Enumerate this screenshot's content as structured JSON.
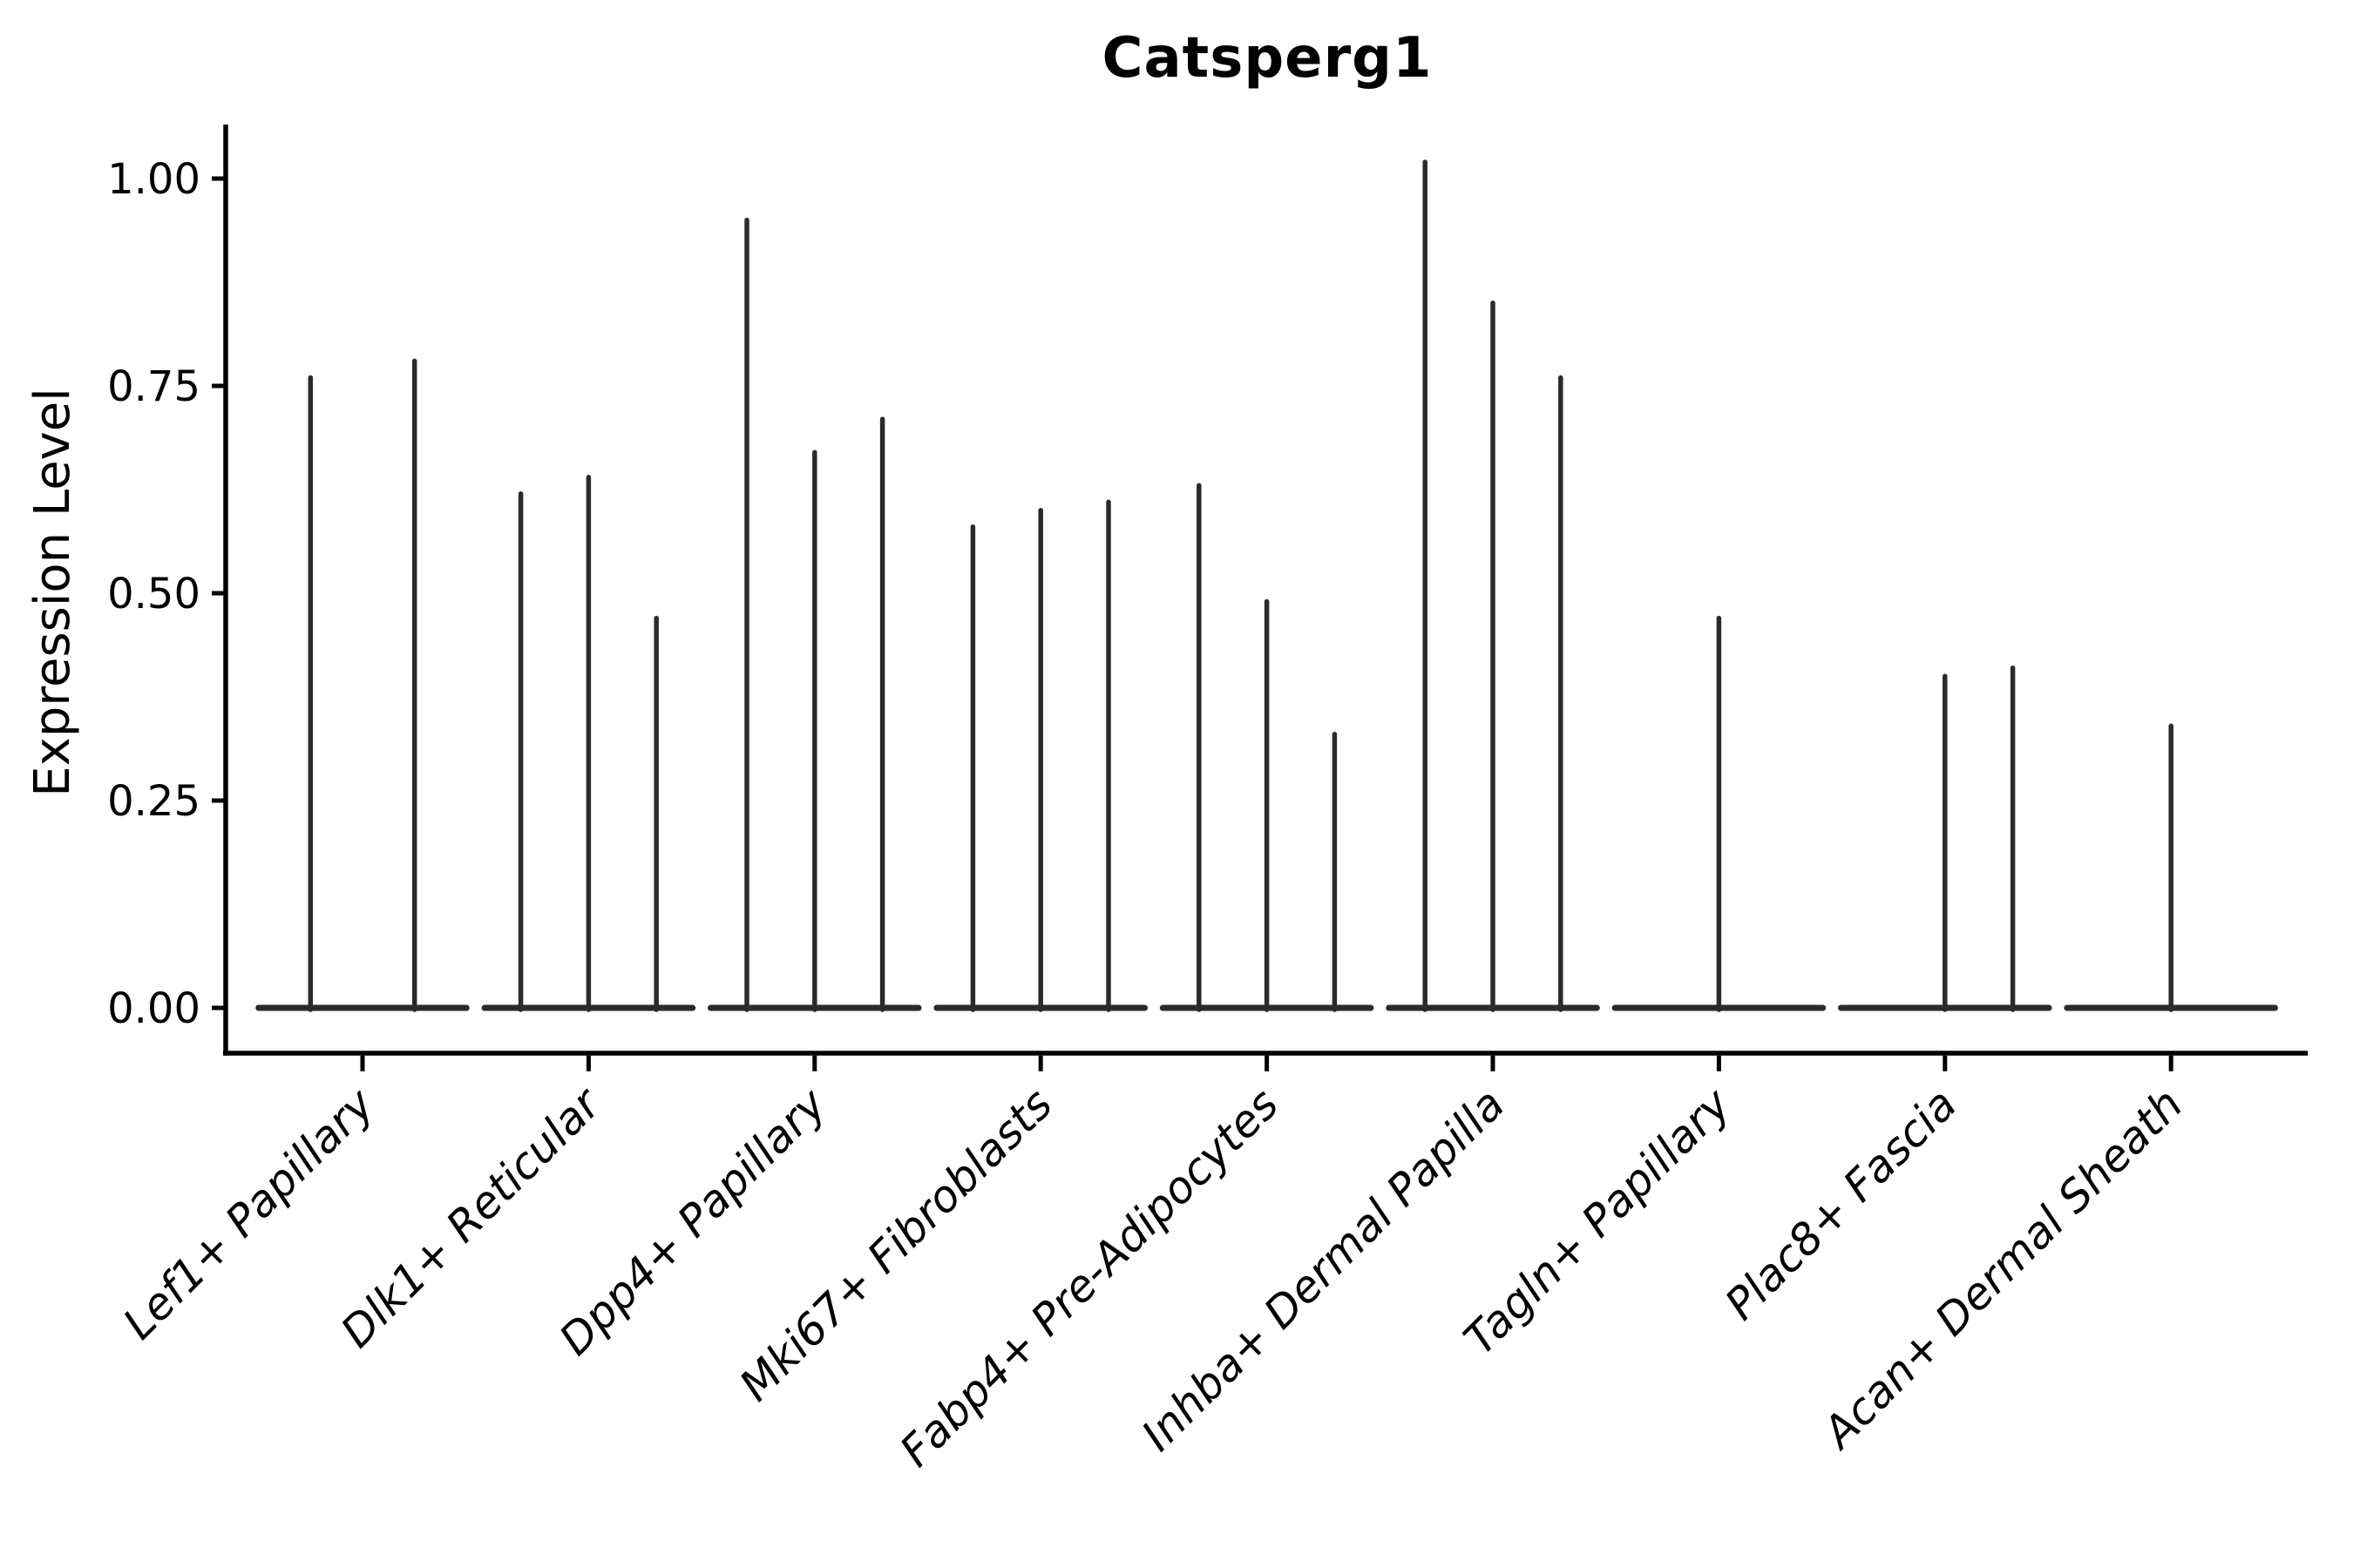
{
  "figure": {
    "title": "Catsperg1",
    "ylabel": "Expression Level"
  },
  "chart_data": {
    "type": "violin",
    "title": "Catsperg1",
    "xlabel": "",
    "ylabel": "Expression Level",
    "ylim": [
      -0.055,
      1.065
    ],
    "grid": false,
    "legend": null,
    "colors": {
      "violin_stroke": "#2b2b2b",
      "axis": "#000000",
      "text": "#000000"
    },
    "yticks": [
      {
        "value": 1.0,
        "label": "1.00"
      },
      {
        "value": 0.75,
        "label": "0.75"
      },
      {
        "value": 0.5,
        "label": "0.50"
      },
      {
        "value": 0.25,
        "label": "0.25"
      },
      {
        "value": 0.0,
        "label": "0.00"
      }
    ],
    "categories": [
      "Lef1+ Papillary",
      "Dlk1+ Reticular",
      "Dpp4+ Papillary",
      "Mki67+ Fibroblasts",
      "Fabp4+ Pre-Adipocytes",
      "Inhba+ Dermal Papilla",
      "Tagln+ Papillary",
      "Plac8+ Fascia",
      "Acan+ Dermal Sheath"
    ],
    "groups": [
      {
        "category": "Lef1+ Papillary",
        "violins": [
          {
            "peak": 0.76,
            "offset": -0.23
          },
          {
            "peak": 0.78,
            "offset": 0.23
          }
        ]
      },
      {
        "category": "Dlk1+ Reticular",
        "violins": [
          {
            "peak": 0.62,
            "offset": -0.3
          },
          {
            "peak": 0.64,
            "offset": 0.0
          },
          {
            "peak": 0.47,
            "offset": 0.3
          }
        ]
      },
      {
        "category": "Dpp4+ Papillary",
        "violins": [
          {
            "peak": 0.95,
            "offset": -0.3
          },
          {
            "peak": 0.67,
            "offset": 0.0
          },
          {
            "peak": 0.71,
            "offset": 0.3
          }
        ]
      },
      {
        "category": "Mki67+ Fibroblasts",
        "violins": [
          {
            "peak": 0.58,
            "offset": -0.3
          },
          {
            "peak": 0.6,
            "offset": 0.0
          },
          {
            "peak": 0.61,
            "offset": 0.3
          }
        ]
      },
      {
        "category": "Fabp4+ Pre-Adipocytes",
        "violins": [
          {
            "peak": 0.63,
            "offset": -0.3
          },
          {
            "peak": 0.49,
            "offset": 0.0
          },
          {
            "peak": 0.33,
            "offset": 0.3
          }
        ]
      },
      {
        "category": "Inhba+ Dermal Papilla",
        "violins": [
          {
            "peak": 1.02,
            "offset": -0.3
          },
          {
            "peak": 0.85,
            "offset": 0.0
          },
          {
            "peak": 0.76,
            "offset": 0.3
          }
        ]
      },
      {
        "category": "Tagln+ Papillary",
        "violins": [
          {
            "peak": 0.47,
            "offset": 0.0
          }
        ]
      },
      {
        "category": "Plac8+ Fascia",
        "violins": [
          {
            "peak": 0.4,
            "offset": 0.0
          },
          {
            "peak": 0.41,
            "offset": 0.3
          }
        ]
      },
      {
        "category": "Acan+ Dermal Sheath",
        "violins": [
          {
            "peak": 0.34,
            "offset": 0.0
          }
        ]
      }
    ],
    "baseline_halfwidth": 0.46
  }
}
